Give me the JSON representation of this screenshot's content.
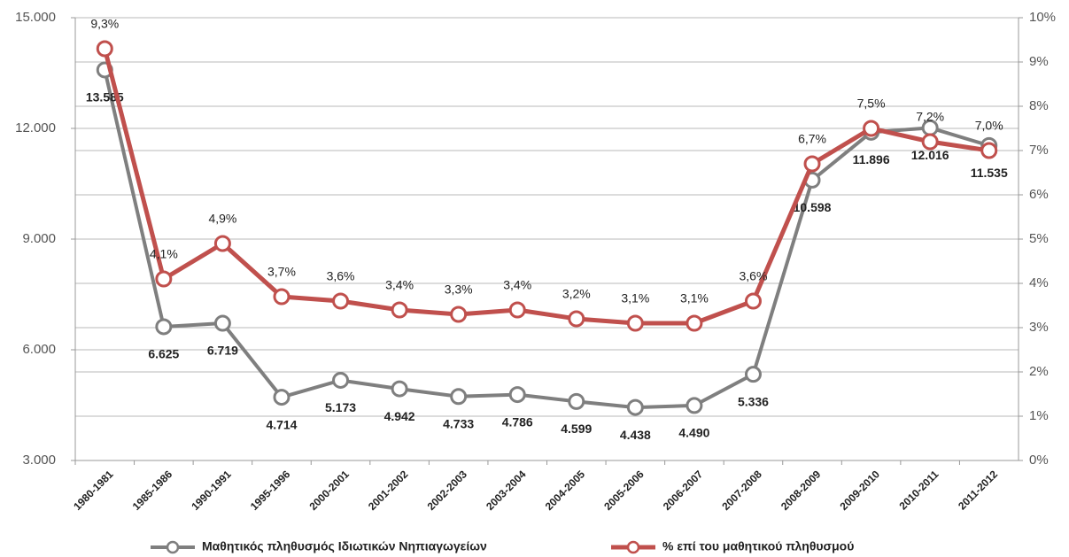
{
  "chart_data": {
    "type": "line",
    "categories": [
      "1980-1981",
      "1985-1986",
      "1990-1991",
      "1995-1996",
      "2000-2001",
      "2001-2002",
      "2002-2003",
      "2003-2004",
      "2004-2005",
      "2005-2006",
      "2006-2007",
      "2007-2008",
      "2008-2009",
      "2009-2010",
      "2010-2011",
      "2011-2012"
    ],
    "series": [
      {
        "name": "Μαθητικός πληθυσμός Ιδιωτικών Νηπιαγωγείων",
        "color": "#7f7f7f",
        "values": [
          13585,
          6625,
          6719,
          4714,
          5173,
          4942,
          4733,
          4786,
          4599,
          4438,
          4490,
          5336,
          10598,
          11896,
          12016,
          11535
        ],
        "value_labels": [
          "13.585",
          "6.625",
          "6.719",
          "4.714",
          "5.173",
          "4.942",
          "4.733",
          "4.786",
          "4.599",
          "4.438",
          "4.490",
          "5.336",
          "10.598",
          "11.896",
          "12.016",
          "11.535"
        ]
      },
      {
        "name": "% επί του μαθητικού πληθυσμού",
        "color": "#c0504d",
        "axis": "y2",
        "values": [
          9.3,
          4.1,
          4.9,
          3.7,
          3.6,
          3.4,
          3.3,
          3.4,
          3.2,
          3.1,
          3.1,
          3.6,
          6.7,
          7.5,
          7.2,
          7.0
        ],
        "value_labels": [
          "9,3%",
          "4,1%",
          "4,9%",
          "3,7%",
          "3,6%",
          "3,4%",
          "3,3%",
          "3,4%",
          "3,2%",
          "3,1%",
          "3,1%",
          "3,6%",
          "6,7%",
          "7,5%",
          "7,2%",
          "7,0%"
        ]
      }
    ],
    "ylim": [
      3000,
      15000
    ],
    "yticks": [
      {
        "value": 3000,
        "label": "3.000"
      },
      {
        "value": 6000,
        "label": "6.000"
      },
      {
        "value": 9000,
        "label": "9.000"
      },
      {
        "value": 12000,
        "label": "12.000"
      },
      {
        "value": 15000,
        "label": "15.000"
      }
    ],
    "y2lim": [
      0,
      10
    ],
    "y2ticks": [
      {
        "value": 0,
        "label": "0%"
      },
      {
        "value": 1,
        "label": "1%"
      },
      {
        "value": 2,
        "label": "2%"
      },
      {
        "value": 3,
        "label": "3%"
      },
      {
        "value": 4,
        "label": "4%"
      },
      {
        "value": 5,
        "label": "5%"
      },
      {
        "value": 6,
        "label": "6%"
      },
      {
        "value": 7,
        "label": "7%"
      },
      {
        "value": 8,
        "label": "8%"
      },
      {
        "value": 9,
        "label": "9%"
      },
      {
        "value": 10,
        "label": "10%"
      }
    ],
    "grid": true,
    "legend": "bottom"
  }
}
